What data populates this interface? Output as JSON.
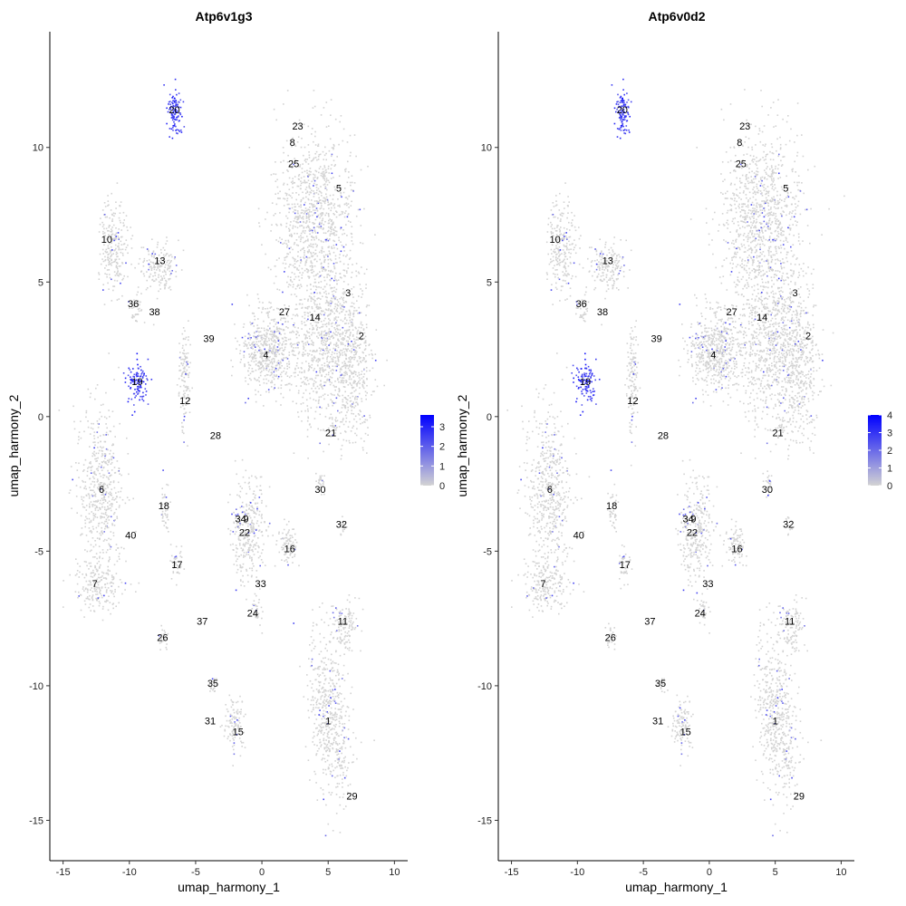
{
  "chart_data": [
    {
      "type": "scatter",
      "title": "Atp6v1g3",
      "xlabel": "umap_harmony_1",
      "ylabel": "umap_harmony_2",
      "xlim": [
        -16,
        11
      ],
      "ylim": [
        -16.5,
        14.3
      ],
      "xticks": [
        -15,
        -10,
        -5,
        0,
        5,
        10
      ],
      "yticks": [
        -15,
        -10,
        -5,
        0,
        5,
        10
      ],
      "xtick_labels": [
        "-15",
        "-10",
        "-5",
        "0",
        "5",
        "10"
      ],
      "ytick_labels": [
        "-15",
        "-10",
        "-5",
        "0",
        "5",
        "10"
      ],
      "grid": false,
      "legend": {
        "placement": "right",
        "scale_min": 0,
        "scale_max": 3.6,
        "ticks": [
          0,
          1,
          2,
          3
        ],
        "tick_labels": [
          "0",
          "1",
          "2",
          "3"
        ],
        "low_color": "#d3d3d3",
        "high_color": "#0000ff"
      },
      "cluster_labels": [
        {
          "text": "20",
          "x": -6.6,
          "y": 11.4
        },
        {
          "text": "23",
          "x": 2.7,
          "y": 10.8
        },
        {
          "text": "8",
          "x": 2.3,
          "y": 10.2
        },
        {
          "text": "25",
          "x": 2.4,
          "y": 9.4
        },
        {
          "text": "5",
          "x": 5.8,
          "y": 8.5
        },
        {
          "text": "10",
          "x": -11.7,
          "y": 6.6
        },
        {
          "text": "13",
          "x": -7.7,
          "y": 5.8
        },
        {
          "text": "3",
          "x": 6.5,
          "y": 4.6
        },
        {
          "text": "36",
          "x": -9.7,
          "y": 4.2
        },
        {
          "text": "38",
          "x": -8.1,
          "y": 3.9
        },
        {
          "text": "27",
          "x": 1.7,
          "y": 3.9
        },
        {
          "text": "14",
          "x": 4.0,
          "y": 3.7
        },
        {
          "text": "39",
          "x": -4.0,
          "y": 2.9
        },
        {
          "text": "2",
          "x": 7.5,
          "y": 3.0
        },
        {
          "text": "4",
          "x": 0.3,
          "y": 2.3
        },
        {
          "text": "19",
          "x": -9.4,
          "y": 1.3
        },
        {
          "text": "12",
          "x": -5.8,
          "y": 0.6
        },
        {
          "text": "21",
          "x": 5.2,
          "y": -0.6
        },
        {
          "text": "28",
          "x": -3.5,
          "y": -0.7
        },
        {
          "text": "6",
          "x": -12.1,
          "y": -2.7
        },
        {
          "text": "30",
          "x": 4.4,
          "y": -2.7
        },
        {
          "text": "18",
          "x": -7.4,
          "y": -3.3
        },
        {
          "text": "34",
          "x": -1.6,
          "y": -3.8
        },
        {
          "text": "9",
          "x": -1.2,
          "y": -3.8
        },
        {
          "text": "32",
          "x": 6.0,
          "y": -4.0
        },
        {
          "text": "22",
          "x": -1.3,
          "y": -4.3
        },
        {
          "text": "40",
          "x": -9.9,
          "y": -4.4
        },
        {
          "text": "16",
          "x": 2.1,
          "y": -4.9
        },
        {
          "text": "17",
          "x": -6.4,
          "y": -5.5
        },
        {
          "text": "7",
          "x": -12.6,
          "y": -6.2
        },
        {
          "text": "33",
          "x": -0.1,
          "y": -6.2
        },
        {
          "text": "24",
          "x": -0.7,
          "y": -7.3
        },
        {
          "text": "11",
          "x": 6.1,
          "y": -7.6
        },
        {
          "text": "37",
          "x": -4.5,
          "y": -7.6
        },
        {
          "text": "26",
          "x": -7.5,
          "y": -8.2
        },
        {
          "text": "35",
          "x": -3.7,
          "y": -9.9
        },
        {
          "text": "31",
          "x": -3.9,
          "y": -11.3
        },
        {
          "text": "1",
          "x": 5.0,
          "y": -11.3
        },
        {
          "text": "15",
          "x": -1.8,
          "y": -11.7
        },
        {
          "text": "29",
          "x": 6.8,
          "y": -14.1
        }
      ],
      "high_expression_clusters": [
        "20",
        "19"
      ]
    },
    {
      "type": "scatter",
      "title": "Atp6v0d2",
      "xlabel": "umap_harmony_1",
      "ylabel": "umap_harmony_2",
      "xlim": [
        -16,
        11
      ],
      "ylim": [
        -16.5,
        14.3
      ],
      "xticks": [
        -15,
        -10,
        -5,
        0,
        5,
        10
      ],
      "yticks": [
        -15,
        -10,
        -5,
        0,
        5,
        10
      ],
      "xtick_labels": [
        "-15",
        "-10",
        "-5",
        "0",
        "5",
        "10"
      ],
      "ytick_labels": [
        "-15",
        "-10",
        "-5",
        "0",
        "5",
        "10"
      ],
      "grid": false,
      "legend": {
        "placement": "right",
        "scale_min": 0,
        "scale_max": 4,
        "ticks": [
          0,
          1,
          2,
          3,
          4
        ],
        "tick_labels": [
          "0",
          "1",
          "2",
          "3",
          "4"
        ],
        "low_color": "#d3d3d3",
        "high_color": "#0000ff"
      },
      "cluster_labels": [
        {
          "text": "20",
          "x": -6.6,
          "y": 11.4
        },
        {
          "text": "23",
          "x": 2.7,
          "y": 10.8
        },
        {
          "text": "8",
          "x": 2.3,
          "y": 10.2
        },
        {
          "text": "25",
          "x": 2.4,
          "y": 9.4
        },
        {
          "text": "5",
          "x": 5.8,
          "y": 8.5
        },
        {
          "text": "10",
          "x": -11.7,
          "y": 6.6
        },
        {
          "text": "13",
          "x": -7.7,
          "y": 5.8
        },
        {
          "text": "3",
          "x": 6.5,
          "y": 4.6
        },
        {
          "text": "36",
          "x": -9.7,
          "y": 4.2
        },
        {
          "text": "38",
          "x": -8.1,
          "y": 3.9
        },
        {
          "text": "27",
          "x": 1.7,
          "y": 3.9
        },
        {
          "text": "14",
          "x": 4.0,
          "y": 3.7
        },
        {
          "text": "39",
          "x": -4.0,
          "y": 2.9
        },
        {
          "text": "2",
          "x": 7.5,
          "y": 3.0
        },
        {
          "text": "4",
          "x": 0.3,
          "y": 2.3
        },
        {
          "text": "19",
          "x": -9.4,
          "y": 1.3
        },
        {
          "text": "12",
          "x": -5.8,
          "y": 0.6
        },
        {
          "text": "21",
          "x": 5.2,
          "y": -0.6
        },
        {
          "text": "28",
          "x": -3.5,
          "y": -0.7
        },
        {
          "text": "6",
          "x": -12.1,
          "y": -2.7
        },
        {
          "text": "30",
          "x": 4.4,
          "y": -2.7
        },
        {
          "text": "18",
          "x": -7.4,
          "y": -3.3
        },
        {
          "text": "34",
          "x": -1.6,
          "y": -3.8
        },
        {
          "text": "9",
          "x": -1.2,
          "y": -3.8
        },
        {
          "text": "32",
          "x": 6.0,
          "y": -4.0
        },
        {
          "text": "22",
          "x": -1.3,
          "y": -4.3
        },
        {
          "text": "40",
          "x": -9.9,
          "y": -4.4
        },
        {
          "text": "16",
          "x": 2.1,
          "y": -4.9
        },
        {
          "text": "17",
          "x": -6.4,
          "y": -5.5
        },
        {
          "text": "7",
          "x": -12.6,
          "y": -6.2
        },
        {
          "text": "33",
          "x": -0.1,
          "y": -6.2
        },
        {
          "text": "24",
          "x": -0.7,
          "y": -7.3
        },
        {
          "text": "11",
          "x": 6.1,
          "y": -7.6
        },
        {
          "text": "37",
          "x": -4.5,
          "y": -7.6
        },
        {
          "text": "26",
          "x": -7.5,
          "y": -8.2
        },
        {
          "text": "35",
          "x": -3.7,
          "y": -9.9
        },
        {
          "text": "31",
          "x": -3.9,
          "y": -11.3
        },
        {
          "text": "1",
          "x": 5.0,
          "y": -11.3
        },
        {
          "text": "15",
          "x": -1.8,
          "y": -11.7
        },
        {
          "text": "29",
          "x": 6.8,
          "y": -14.1
        }
      ],
      "high_expression_clusters": [
        "20",
        "19"
      ]
    }
  ]
}
